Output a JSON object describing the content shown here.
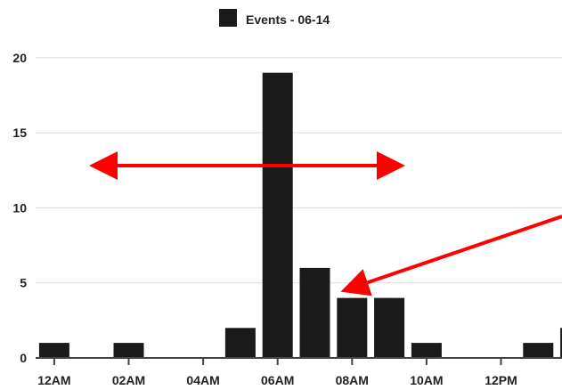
{
  "chart_data": {
    "type": "bar",
    "title": "",
    "xlabel": "",
    "ylabel": "",
    "legend": {
      "position": "top-center",
      "entries": [
        {
          "label": "Events - 06-14",
          "color": "#1a1a1a"
        }
      ]
    },
    "x_tick_labels": [
      "12AM",
      "02AM",
      "04AM",
      "06AM",
      "08AM",
      "10AM",
      "12PM"
    ],
    "y_ticks": [
      0,
      5,
      10,
      15,
      20
    ],
    "ylim": [
      0,
      21
    ],
    "grid": true,
    "categories": [
      "0",
      "1",
      "2",
      "3",
      "4",
      "5",
      "6",
      "7",
      "8",
      "9",
      "10",
      "11",
      "12",
      "13",
      "14"
    ],
    "series": [
      {
        "name": "Events - 06-14",
        "color": "#1a1a1a",
        "values": [
          1,
          0,
          1,
          0,
          0,
          2,
          19,
          6,
          4,
          4,
          1,
          0,
          0,
          1,
          2
        ]
      }
    ],
    "annotations": [
      {
        "type": "double-arrow",
        "color": "#ff0000"
      },
      {
        "type": "arrow",
        "color": "#ff0000"
      }
    ]
  }
}
